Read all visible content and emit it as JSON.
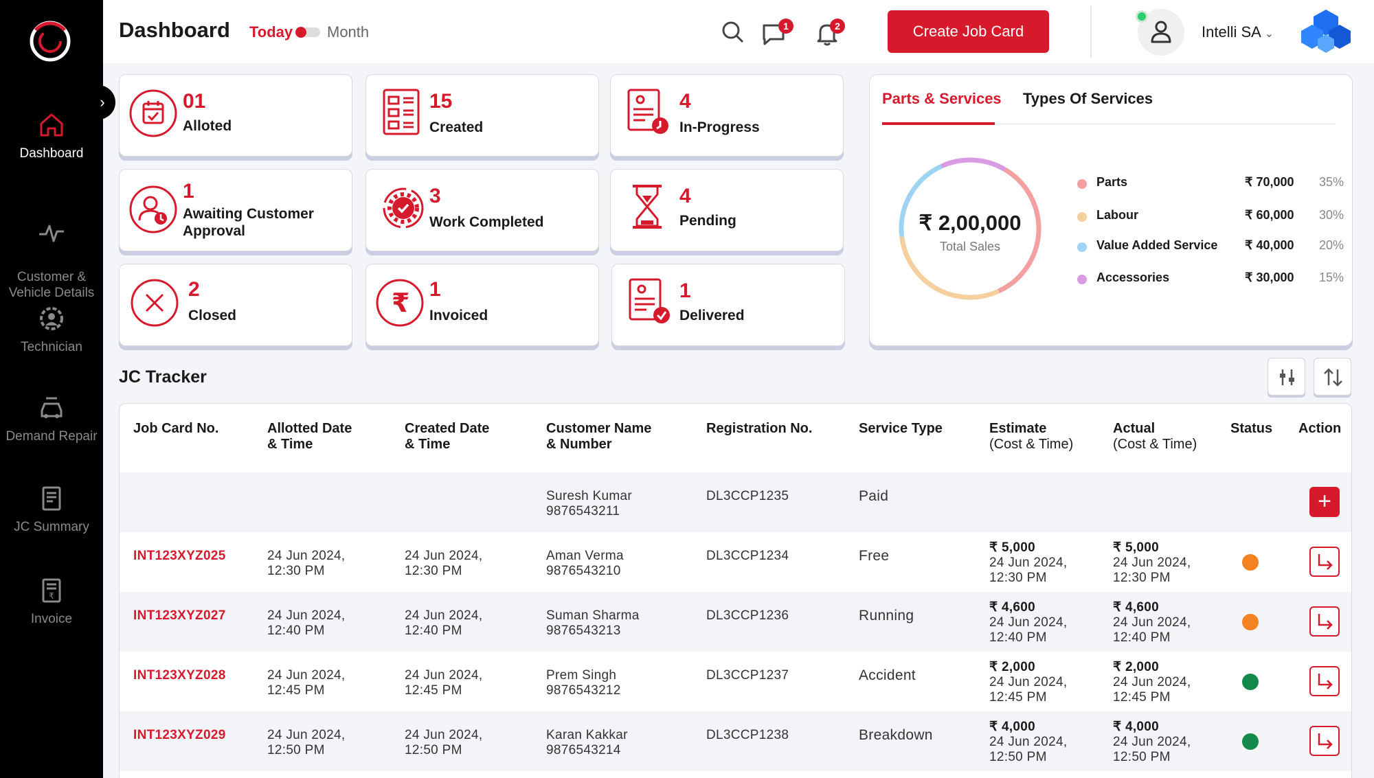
{
  "sidebar": {
    "items": [
      {
        "label": "Dashboard"
      },
      {
        "label": "Customer &\nVehicle Details"
      },
      {
        "label": "Technician"
      },
      {
        "label": "Demand Repair"
      },
      {
        "label": "JC Summary"
      },
      {
        "label": "Invoice"
      }
    ]
  },
  "header": {
    "title": "Dashboard",
    "period_today": "Today",
    "period_month": "Month",
    "messages_badge": "1",
    "notifications_badge": "2",
    "create_button": "Create Job Card",
    "user_name": "Intelli SA"
  },
  "stats": [
    {
      "count": "01",
      "label": "Alloted"
    },
    {
      "count": "15",
      "label": "Created"
    },
    {
      "count": "4",
      "label": "In-Progress"
    },
    {
      "count": "1",
      "label": "Awaiting Customer Approval"
    },
    {
      "count": "3",
      "label": "Work Completed"
    },
    {
      "count": "4",
      "label": "Pending"
    },
    {
      "count": "2",
      "label": "Closed"
    },
    {
      "count": "1",
      "label": "Invoiced"
    },
    {
      "count": "1",
      "label": "Delivered"
    }
  ],
  "sales": {
    "tabs": [
      "Parts & Services",
      "Types Of Services"
    ],
    "total_value": "₹ 2,00,000",
    "total_label": "Total Sales",
    "legend": [
      {
        "name": "Parts",
        "amount": "₹ 70,000",
        "percent": "35%",
        "color": "#f4a0a0"
      },
      {
        "name": "Labour",
        "amount": "₹ 60,000",
        "percent": "30%",
        "color": "#f6cf9e"
      },
      {
        "name": "Value Added Service",
        "amount": "₹ 40,000",
        "percent": "20%",
        "color": "#9fd3f4"
      },
      {
        "name": "Accessories",
        "amount": "₹ 30,000",
        "percent": "15%",
        "color": "#d99ce4"
      }
    ]
  },
  "tracker": {
    "title": "JC Tracker",
    "headers": [
      {
        "main": "Job Card No.",
        "sub": ""
      },
      {
        "main": "Allotted Date",
        "sub2": "& Time"
      },
      {
        "main": "Created Date",
        "sub2": "& Time"
      },
      {
        "main": "Customer Name",
        "sub2": "& Number"
      },
      {
        "main": "Registration No.",
        "sub": ""
      },
      {
        "main": "Service Type",
        "sub": ""
      },
      {
        "main": "Estimate",
        "sub": "(Cost & Time)"
      },
      {
        "main": "Actual",
        "sub": "(Cost & Time)"
      },
      {
        "main": "Status",
        "sub": ""
      },
      {
        "main": "Action",
        "sub": ""
      }
    ],
    "rows": [
      {
        "jc": "",
        "allotted1": "",
        "allotted2": "",
        "created1": "",
        "created2": "",
        "cust_name": "Suresh Kumar",
        "cust_phone": "9876543211",
        "reg": "DL3CCP1235",
        "service": "Paid",
        "est_cost": "",
        "est_d1": "",
        "est_d2": "",
        "act_cost": "",
        "act_d1": "",
        "act_d2": "",
        "status_color": "",
        "action": "add"
      },
      {
        "jc": "INT123XYZ025",
        "allotted1": "24 Jun 2024,",
        "allotted2": "12:30 PM",
        "created1": "24 Jun 2024,",
        "created2": "12:30 PM",
        "cust_name": "Aman Verma",
        "cust_phone": "9876543210",
        "reg": "DL3CCP1234",
        "service": "Free",
        "est_cost": "₹ 5,000",
        "est_d1": "24 Jun 2024,",
        "est_d2": "12:30 PM",
        "act_cost": "₹ 5,000",
        "act_d1": "24 Jun 2024,",
        "act_d2": "12:30 PM",
        "status_color": "#f58220",
        "action": "open"
      },
      {
        "jc": "INT123XYZ027",
        "allotted1": "24 Jun 2024,",
        "allotted2": "12:40 PM",
        "created1": "24 Jun 2024,",
        "created2": "12:40 PM",
        "cust_name": "Suman Sharma",
        "cust_phone": "9876543213",
        "reg": "DL3CCP1236",
        "service": "Running",
        "est_cost": "₹ 4,600",
        "est_d1": "24 Jun 2024,",
        "est_d2": "12:40 PM",
        "act_cost": "₹ 4,600",
        "act_d1": "24 Jun 2024,",
        "act_d2": "12:40 PM",
        "status_color": "#f58220",
        "action": "open"
      },
      {
        "jc": "INT123XYZ028",
        "allotted1": "24 Jun 2024,",
        "allotted2": "12:45 PM",
        "created1": "24 Jun 2024,",
        "created2": "12:45 PM",
        "cust_name": "Prem Singh",
        "cust_phone": "9876543212",
        "reg": "DL3CCP1237",
        "service": "Accident",
        "est_cost": "₹ 2,000",
        "est_d1": "24 Jun 2024,",
        "est_d2": "12:45 PM",
        "act_cost": "₹ 2,000",
        "act_d1": "24 Jun 2024,",
        "act_d2": "12:45 PM",
        "status_color": "#138a4a",
        "action": "open"
      },
      {
        "jc": "INT123XYZ029",
        "allotted1": "24 Jun 2024,",
        "allotted2": "12:50 PM",
        "created1": "24 Jun 2024,",
        "created2": "12:50 PM",
        "cust_name": "Karan Kakkar",
        "cust_phone": "9876543214",
        "reg": "DL3CCP1238",
        "service": "Breakdown",
        "est_cost": "₹ 4,000",
        "est_d1": "24 Jun 2024,",
        "est_d2": "12:50 PM",
        "act_cost": "₹ 4,000",
        "act_d1": "24 Jun 2024,",
        "act_d2": "12:50 PM",
        "status_color": "#138a4a",
        "action": "open"
      }
    ]
  },
  "colors": {
    "accent": "#d7192c",
    "sidebar": "#000000"
  }
}
